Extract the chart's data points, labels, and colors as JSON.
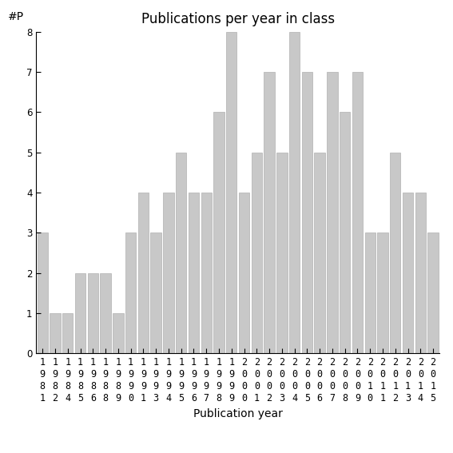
{
  "title": "Publications per year in class",
  "xlabel": "Publication year",
  "ylabel": "#P",
  "years": [
    "1981",
    "1982",
    "1984",
    "1985",
    "1986",
    "1988",
    "1989",
    "1990",
    "1991",
    "1993",
    "1994",
    "1995",
    "1996",
    "1997",
    "1998",
    "1999",
    "2000",
    "2001",
    "2002",
    "2003",
    "2004",
    "2005",
    "2006",
    "2007",
    "2008",
    "2009",
    "2010",
    "2011",
    "2012",
    "2013",
    "2014",
    "2015"
  ],
  "values": [
    3,
    1,
    1,
    2,
    2,
    2,
    1,
    3,
    4,
    3,
    4,
    5,
    4,
    4,
    6,
    8,
    4,
    5,
    7,
    5,
    8,
    7,
    5,
    7,
    6,
    7,
    3,
    3,
    5,
    4,
    4,
    3
  ],
  "bar_color": "#c8c8c8",
  "bar_edge_color": "#b0b0b0",
  "ylim": [
    0,
    8
  ],
  "yticks": [
    0,
    1,
    2,
    3,
    4,
    5,
    6,
    7,
    8
  ],
  "bg_color": "#ffffff",
  "title_fontsize": 12,
  "label_fontsize": 10,
  "tick_fontsize": 8.5
}
